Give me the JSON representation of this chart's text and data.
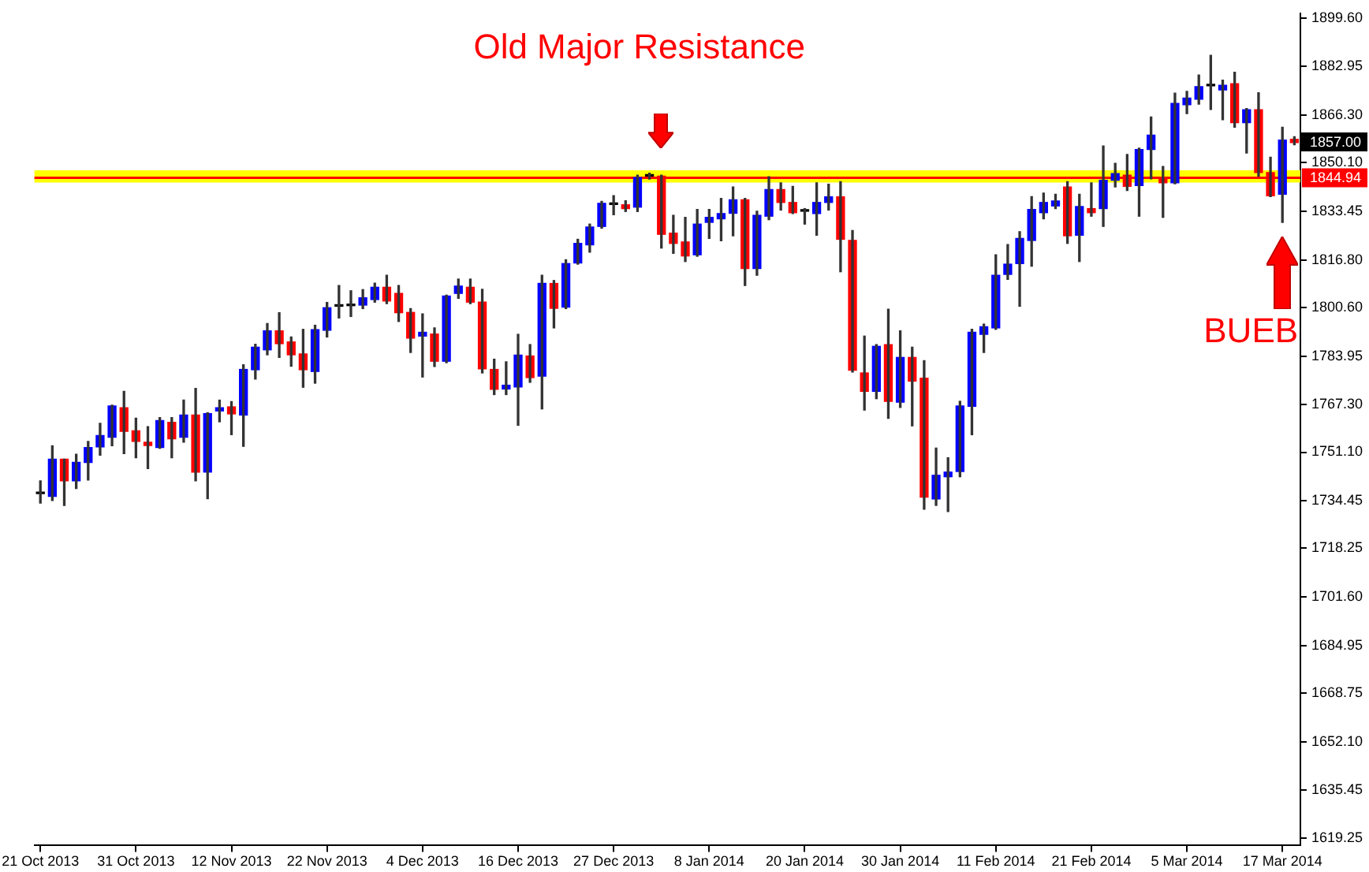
{
  "chart_data": {
    "type": "candlestick",
    "categories": [
      "21 Oct 2013",
      null,
      null,
      null,
      null,
      null,
      null,
      null,
      "31 Oct 2013",
      null,
      null,
      null,
      null,
      null,
      null,
      null,
      "12 Nov 2013",
      null,
      null,
      null,
      null,
      null,
      null,
      null,
      "22 Nov 2013",
      null,
      null,
      null,
      null,
      null,
      null,
      null,
      "4 Dec 2013",
      null,
      null,
      null,
      null,
      null,
      null,
      null,
      "16 Dec 2013",
      null,
      null,
      null,
      null,
      null,
      null,
      null,
      "27 Dec 2013",
      null,
      null,
      null,
      null,
      null,
      null,
      null,
      "8 Jan 2014",
      null,
      null,
      null,
      null,
      null,
      null,
      null,
      "20 Jan 2014",
      null,
      null,
      null,
      null,
      null,
      null,
      null,
      "30 Jan 2014",
      null,
      null,
      null,
      null,
      null,
      null,
      null,
      "11 Feb 2014",
      null,
      null,
      null,
      null,
      null,
      null,
      null,
      "21 Feb 2014",
      null,
      null,
      null,
      null,
      null,
      null,
      null,
      "5 Mar 2014",
      null,
      null,
      null,
      null,
      null,
      null,
      null,
      "17 Mar 2014",
      null
    ],
    "ohlc": [
      [
        1736.9,
        1741.3,
        1733.7,
        1736.9
      ],
      [
        1736.0,
        1753.3,
        1734.6,
        1748.7
      ],
      [
        1748.7,
        1748.7,
        1732.9,
        1741.3
      ],
      [
        1741.3,
        1750.4,
        1738.7,
        1747.6
      ],
      [
        1747.6,
        1754.8,
        1741.6,
        1752.7
      ],
      [
        1752.9,
        1761.0,
        1750.1,
        1756.8
      ],
      [
        1756.2,
        1767.2,
        1753.3,
        1766.9
      ],
      [
        1766.3,
        1771.9,
        1750.6,
        1758.2
      ],
      [
        1758.4,
        1762.7,
        1749.2,
        1754.8
      ],
      [
        1754.5,
        1759.8,
        1745.5,
        1753.4
      ],
      [
        1752.7,
        1762.9,
        1752.4,
        1761.9
      ],
      [
        1761.3,
        1762.9,
        1749.2,
        1755.7
      ],
      [
        1756.2,
        1768.9,
        1754.5,
        1763.8
      ],
      [
        1763.8,
        1772.9,
        1741.3,
        1744.3
      ],
      [
        1744.3,
        1764.6,
        1735.2,
        1764.3
      ],
      [
        1765.2,
        1768.9,
        1761.5,
        1766.3
      ],
      [
        1766.6,
        1768.4,
        1757.1,
        1764.2
      ],
      [
        1763.8,
        1781.0,
        1753.1,
        1779.4
      ],
      [
        1779.3,
        1788.0,
        1776.1,
        1787.0
      ],
      [
        1786.1,
        1795.1,
        1784.4,
        1792.6
      ],
      [
        1792.6,
        1798.8,
        1783.5,
        1788.2
      ],
      [
        1788.8,
        1790.5,
        1780.5,
        1784.4
      ],
      [
        1784.7,
        1793.1,
        1773.3,
        1779.3
      ],
      [
        1778.7,
        1794.5,
        1774.7,
        1793.0
      ],
      [
        1792.8,
        1802.3,
        1790.5,
        1800.5
      ],
      [
        1801.0,
        1808.1,
        1797.0,
        1801.0
      ],
      [
        1801.2,
        1806.3,
        1797.5,
        1801.2
      ],
      [
        1801.4,
        1806.7,
        1800.2,
        1803.9
      ],
      [
        1803.3,
        1808.9,
        1802.4,
        1807.5
      ],
      [
        1807.5,
        1811.6,
        1801.9,
        1802.8
      ],
      [
        1805.4,
        1808.1,
        1795.8,
        1798.8
      ],
      [
        1798.9,
        1800.2,
        1785.2,
        1790.1
      ],
      [
        1790.8,
        1798.4,
        1776.8,
        1792.1
      ],
      [
        1791.5,
        1793.6,
        1780.4,
        1782.2
      ],
      [
        1782.2,
        1804.8,
        1781.7,
        1804.5
      ],
      [
        1805.4,
        1810.3,
        1803.7,
        1807.9
      ],
      [
        1807.5,
        1810.3,
        1801.9,
        1802.4
      ],
      [
        1802.4,
        1806.8,
        1778.2,
        1779.6
      ],
      [
        1779.4,
        1782.9,
        1770.8,
        1772.6
      ],
      [
        1772.7,
        1782.0,
        1770.8,
        1774.0
      ],
      [
        1773.4,
        1791.4,
        1760.3,
        1784.3
      ],
      [
        1784.0,
        1787.9,
        1775.0,
        1776.6
      ],
      [
        1777.1,
        1811.6,
        1765.9,
        1808.8
      ],
      [
        1808.8,
        1809.8,
        1793.6,
        1800.3
      ],
      [
        1800.7,
        1816.9,
        1800.2,
        1815.6
      ],
      [
        1815.8,
        1823.9,
        1815.4,
        1822.5
      ],
      [
        1822.0,
        1829.1,
        1819.5,
        1828.1
      ],
      [
        1828.3,
        1836.9,
        1827.7,
        1836.2
      ],
      [
        1835.8,
        1838.8,
        1832.3,
        1835.8
      ],
      [
        1835.7,
        1837.1,
        1833.4,
        1834.4
      ],
      [
        1834.9,
        1845.8,
        1833.4,
        1845.0
      ],
      [
        1845.5,
        1846.5,
        1844.5,
        1845.5
      ],
      [
        1845.5,
        1845.8,
        1820.9,
        1825.6
      ],
      [
        1826.0,
        1832.1,
        1819.1,
        1822.5
      ],
      [
        1823.0,
        1831.4,
        1816.3,
        1818.2
      ],
      [
        1818.6,
        1834.1,
        1818.1,
        1829.1
      ],
      [
        1829.7,
        1834.1,
        1824.2,
        1831.4
      ],
      [
        1830.9,
        1837.9,
        1823.4,
        1832.7
      ],
      [
        1832.8,
        1841.8,
        1825.1,
        1837.4
      ],
      [
        1837.4,
        1837.9,
        1808.1,
        1813.9
      ],
      [
        1813.9,
        1833.5,
        1811.6,
        1832.1
      ],
      [
        1831.8,
        1845.3,
        1830.6,
        1840.9
      ],
      [
        1840.9,
        1843.2,
        1833.9,
        1836.5
      ],
      [
        1836.5,
        1842.0,
        1832.7,
        1833.0
      ],
      [
        1833.5,
        1834.4,
        1829.1,
        1833.5
      ],
      [
        1832.7,
        1843.2,
        1825.3,
        1836.5
      ],
      [
        1836.5,
        1842.7,
        1833.9,
        1838.4
      ],
      [
        1838.4,
        1843.6,
        1812.8,
        1823.9
      ],
      [
        1823.5,
        1826.9,
        1778.5,
        1779.1
      ],
      [
        1778.2,
        1790.8,
        1765.5,
        1771.9
      ],
      [
        1771.9,
        1787.9,
        1769.4,
        1787.3
      ],
      [
        1787.9,
        1800.0,
        1762.7,
        1768.5
      ],
      [
        1768.2,
        1792.6,
        1766.4,
        1783.5
      ],
      [
        1783.5,
        1787.0,
        1760.1,
        1775.4
      ],
      [
        1776.4,
        1782.4,
        1731.6,
        1735.7
      ],
      [
        1735.1,
        1752.5,
        1732.9,
        1743.2
      ],
      [
        1742.7,
        1749.2,
        1730.8,
        1744.3
      ],
      [
        1744.5,
        1768.5,
        1742.7,
        1766.9
      ],
      [
        1766.8,
        1793.1,
        1757.1,
        1792.1
      ],
      [
        1791.4,
        1794.9,
        1785.2,
        1794.0
      ],
      [
        1793.6,
        1818.6,
        1793.1,
        1811.6
      ],
      [
        1811.9,
        1822.1,
        1810.2,
        1815.4
      ],
      [
        1815.6,
        1826.5,
        1801.0,
        1824.2
      ],
      [
        1823.5,
        1838.5,
        1814.7,
        1834.1
      ],
      [
        1833.0,
        1839.7,
        1830.9,
        1836.5
      ],
      [
        1835.3,
        1839.3,
        1834.4,
        1837.0
      ],
      [
        1841.8,
        1843.6,
        1822.5,
        1825.1
      ],
      [
        1825.3,
        1839.3,
        1816.3,
        1835.1
      ],
      [
        1834.4,
        1843.2,
        1831.8,
        1833.0
      ],
      [
        1834.4,
        1855.8,
        1828.3,
        1844.1
      ],
      [
        1844.1,
        1849.9,
        1841.8,
        1846.4
      ],
      [
        1845.8,
        1852.9,
        1840.6,
        1842.0
      ],
      [
        1842.3,
        1855.1,
        1831.8,
        1854.6
      ],
      [
        1854.6,
        1865.7,
        1844.6,
        1859.5
      ],
      [
        1844.9,
        1848.8,
        1831.4,
        1843.2
      ],
      [
        1843.2,
        1873.9,
        1842.9,
        1870.4
      ],
      [
        1869.9,
        1874.5,
        1866.9,
        1872.2
      ],
      [
        1871.8,
        1880.1,
        1870.1,
        1876.1
      ],
      [
        1876.4,
        1886.8,
        1868.3,
        1876.4
      ],
      [
        1875.0,
        1878.3,
        1864.8,
        1876.6
      ],
      [
        1877.1,
        1881.0,
        1862.2,
        1863.8
      ],
      [
        1863.8,
        1868.6,
        1853.4,
        1868.2
      ],
      [
        1868.2,
        1874.0,
        1845.5,
        1846.7
      ],
      [
        1846.7,
        1852.0,
        1838.5,
        1838.8
      ],
      [
        1839.3,
        1862.2,
        1829.7,
        1857.8
      ],
      [
        1858.1,
        1859.0,
        1856.2,
        1857.0
      ]
    ],
    "colors": [
      "#000000",
      "#0000ff",
      "#ff0000",
      "#0000ff",
      "#0000ff",
      "#0000ff",
      "#0000ff",
      "#ff0000",
      "#ff0000",
      "#ff0000",
      "#0000ff",
      "#ff0000",
      "#0000ff",
      "#ff0000",
      "#0000ff",
      "#0000ff",
      "#ff0000",
      "#0000ff",
      "#0000ff",
      "#0000ff",
      "#ff0000",
      "#ff0000",
      "#ff0000",
      "#0000ff",
      "#0000ff",
      "#000000",
      "#000000",
      "#0000ff",
      "#0000ff",
      "#ff0000",
      "#ff0000",
      "#ff0000",
      "#0000ff",
      "#ff0000",
      "#0000ff",
      "#0000ff",
      "#ff0000",
      "#ff0000",
      "#ff0000",
      "#0000ff",
      "#0000ff",
      "#ff0000",
      "#0000ff",
      "#ff0000",
      "#0000ff",
      "#0000ff",
      "#0000ff",
      "#0000ff",
      "#000000",
      "#ff0000",
      "#0000ff",
      "#000000",
      "#ff0000",
      "#ff0000",
      "#ff0000",
      "#0000ff",
      "#0000ff",
      "#0000ff",
      "#0000ff",
      "#ff0000",
      "#0000ff",
      "#0000ff",
      "#ff0000",
      "#ff0000",
      "#000000",
      "#0000ff",
      "#0000ff",
      "#ff0000",
      "#ff0000",
      "#ff0000",
      "#0000ff",
      "#ff0000",
      "#0000ff",
      "#ff0000",
      "#ff0000",
      "#0000ff",
      "#0000ff",
      "#0000ff",
      "#0000ff",
      "#0000ff",
      "#0000ff",
      "#0000ff",
      "#0000ff",
      "#0000ff",
      "#0000ff",
      "#0000ff",
      "#ff0000",
      "#0000ff",
      "#ff0000",
      "#0000ff",
      "#0000ff",
      "#ff0000",
      "#0000ff",
      "#0000ff",
      "#ff0000",
      "#0000ff",
      "#0000ff",
      "#0000ff",
      "#000000",
      "#0000ff",
      "#ff0000",
      "#0000ff",
      "#ff0000",
      "#ff0000",
      "#0000ff",
      "#ff0000"
    ],
    "ylim": [
      1616.6,
      1901.2
    ],
    "yticks": [
      1619.25,
      1635.45,
      {
        "value": 1652.1,
        "label": "1652.10"
      },
      1668.75,
      1684.95,
      {
        "value": 1701.6,
        "label": "1701.60"
      },
      1718.25,
      1734.45,
      {
        "value": 1751.1,
        "label": "1751.10"
      },
      {
        "value": 1767.3,
        "label": "1767.30"
      },
      1783.95,
      {
        "value": 1800.6,
        "label": "1800.60"
      },
      {
        "value": 1816.8,
        "label": "1816.80"
      },
      1833.45,
      {
        "value": 1850.1,
        "label": "1850.10"
      },
      {
        "value": 1866.3,
        "label": "1866.30"
      },
      1882.95,
      {
        "value": 1899.6,
        "label": "1899.60"
      }
    ],
    "grid": false,
    "bands": [
      {
        "axis": "y",
        "from": 1843.3,
        "to": 1847.5,
        "color": "#ffff00"
      }
    ],
    "ref_lines": [
      {
        "axis": "y",
        "value": 1844.94,
        "label": "1844.94",
        "color": "#ff0000"
      }
    ],
    "annotations": [
      "Old Major Resistance",
      "BUEB",
      "1857.00"
    ]
  }
}
